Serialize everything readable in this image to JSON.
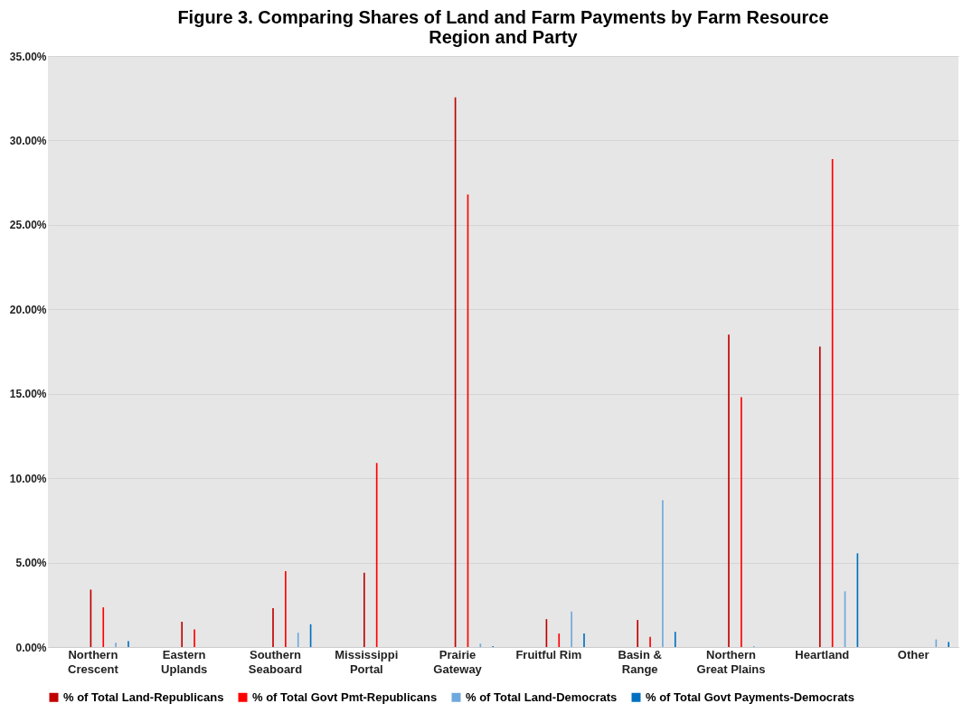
{
  "chart_data": {
    "type": "bar",
    "title": "Figure 3. Comparing Shares of Land and Farm Payments by Farm Resource Region and Party",
    "categories": [
      "Northern Crescent",
      "Eastern Uplands",
      "Southern Seaboard",
      "Mississippi Portal",
      "Prairie Gateway",
      "Fruitful Rim",
      "Basin & Range",
      "Northern Great Plains",
      "Heartland",
      "Other"
    ],
    "series": [
      {
        "name": "% of Total Land-Republicans",
        "color": "#c00000",
        "values": [
          3.4,
          1.5,
          2.3,
          4.4,
          32.55,
          1.65,
          1.6,
          18.5,
          17.8,
          null
        ]
      },
      {
        "name": "% of Total Govt Pmt-Republicans",
        "color": "#ff0000",
        "values": [
          2.35,
          1.05,
          4.5,
          10.9,
          26.8,
          0.8,
          0.6,
          14.8,
          28.9,
          null
        ]
      },
      {
        "name": "% of Total Land-Democrats",
        "color": "#6fa8dc",
        "values": [
          0.25,
          null,
          0.85,
          null,
          0.2,
          2.1,
          8.7,
          0.05,
          3.3,
          0.45
        ]
      },
      {
        "name": "% of Total Govt Payments-Democrats",
        "color": "#0070c0",
        "values": [
          0.35,
          null,
          1.35,
          null,
          0.05,
          0.8,
          0.9,
          null,
          5.55,
          0.3
        ]
      }
    ],
    "ylim": [
      0,
      35
    ],
    "yticks": [
      {
        "value": 0,
        "label": "0.00%"
      },
      {
        "value": 5,
        "label": "5.00%"
      },
      {
        "value": 10,
        "label": "10.00%"
      },
      {
        "value": 15,
        "label": "15.00%"
      },
      {
        "value": 20,
        "label": "20.00%"
      },
      {
        "value": 25,
        "label": "25.00%"
      },
      {
        "value": 30,
        "label": "30.00%"
      },
      {
        "value": 35,
        "label": "35.00%"
      }
    ],
    "grid": "y",
    "legend": "bottom"
  }
}
